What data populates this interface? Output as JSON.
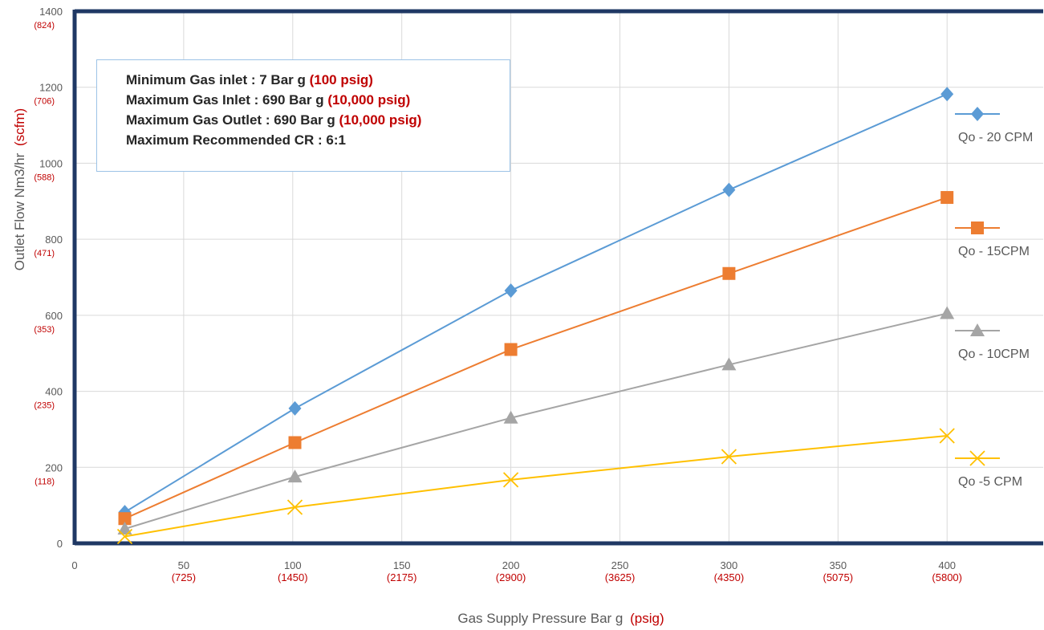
{
  "chart_data": {
    "type": "line",
    "xlabel": "Gas Supply Pressure Bar g",
    "xlabel_unit": "(psig)",
    "ylabel": "Outlet  Flow Nm3/hr",
    "ylabel_unit": "(scfm)",
    "xlim": [
      0,
      450
    ],
    "ylim": [
      0,
      1400
    ],
    "x_ticks": [
      {
        "value": 0,
        "label": "0",
        "sub": ""
      },
      {
        "value": 50,
        "label": "50",
        "sub": "(725)"
      },
      {
        "value": 100,
        "label": "100",
        "sub": "(1450)"
      },
      {
        "value": 150,
        "label": "150",
        "sub": "(2175)"
      },
      {
        "value": 200,
        "label": "200",
        "sub": "(2900)"
      },
      {
        "value": 250,
        "label": "250",
        "sub": "(3625)"
      },
      {
        "value": 300,
        "label": "300",
        "sub": "(4350)"
      },
      {
        "value": 350,
        "label": "350",
        "sub": "(5075)"
      },
      {
        "value": 400,
        "label": "400",
        "sub": "(5800)"
      }
    ],
    "y_ticks": [
      {
        "value": 0,
        "label": "0",
        "sub": ""
      },
      {
        "value": 200,
        "label": "200",
        "sub": "(118)"
      },
      {
        "value": 400,
        "label": "400",
        "sub": "(235)"
      },
      {
        "value": 600,
        "label": "600",
        "sub": "(353)"
      },
      {
        "value": 800,
        "label": "800",
        "sub": "(471)"
      },
      {
        "value": 1000,
        "label": "1000",
        "sub": "(588)"
      },
      {
        "value": 1200,
        "label": "1200",
        "sub": "(706)"
      },
      {
        "value": 1400,
        "label": "1400",
        "sub": "(824)"
      }
    ],
    "grid": true,
    "legend_position": "right",
    "series": [
      {
        "name": "Qo - 20 CPM",
        "color": "#5b9bd5",
        "marker": "diamond",
        "points": [
          [
            23,
            82
          ],
          [
            101,
            355
          ],
          [
            200,
            665
          ],
          [
            300,
            930
          ],
          [
            400,
            1182
          ]
        ]
      },
      {
        "name": "Qo - 15CPM",
        "color": "#ed7d31",
        "marker": "square",
        "points": [
          [
            23,
            65
          ],
          [
            101,
            265
          ],
          [
            200,
            510
          ],
          [
            300,
            710
          ],
          [
            400,
            910
          ]
        ]
      },
      {
        "name": "Qo - 10CPM",
        "color": "#a5a5a5",
        "marker": "triangle",
        "points": [
          [
            23,
            38
          ],
          [
            101,
            175
          ],
          [
            200,
            330
          ],
          [
            300,
            470
          ],
          [
            400,
            605
          ]
        ]
      },
      {
        "name": "Qo -5 CPM",
        "color": "#ffc000",
        "marker": "x",
        "points": [
          [
            23,
            18
          ],
          [
            101,
            95
          ],
          [
            200,
            167
          ],
          [
            300,
            228
          ],
          [
            400,
            283
          ]
        ]
      }
    ]
  },
  "notes": [
    {
      "text": "Minimum Gas inlet : 7 Bar g ",
      "accent": "(100 psig)"
    },
    {
      "text": "Maximum Gas Inlet  : 690 Bar g ",
      "accent": "(10,000 psig)"
    },
    {
      "text": "Maximum Gas Outlet : 690 Bar g ",
      "accent": "(10,000 psig)"
    },
    {
      "text": "Maximum Recommended CR : 6:1",
      "accent": ""
    }
  ],
  "colors": {
    "frame": "#1f3864",
    "grid": "#d9d9d9",
    "accent": "#c00000",
    "note_border": "#9dc3e6"
  }
}
